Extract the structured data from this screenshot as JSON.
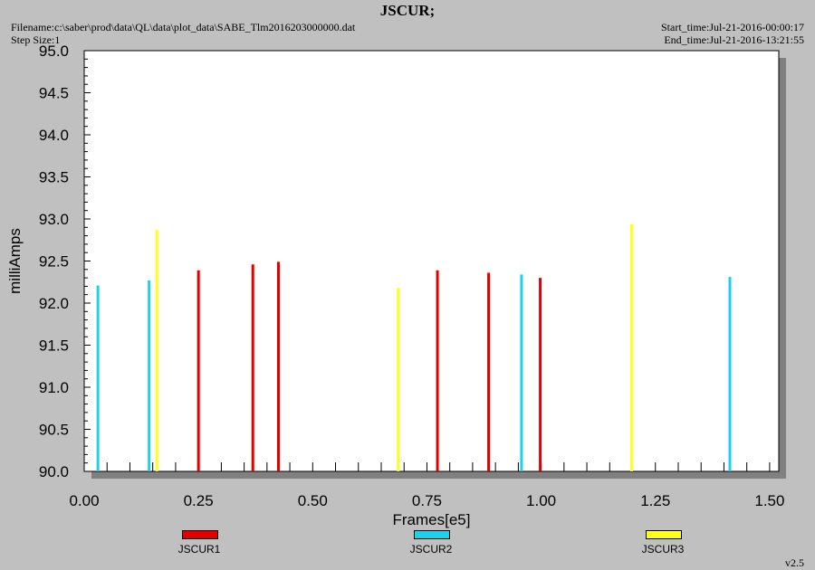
{
  "header": {
    "title": "JSCUR;",
    "filename": "Filename:c:\\saber\\prod\\data\\QL\\data\\plot_data\\SABE_Tlm2016203000000.dat",
    "step_size": "Step Size:1",
    "start_time": "Start_time:Jul-21-2016-00:00:17",
    "end_time": "End_time:Jul-21-2016-13:21:55"
  },
  "version": "v2.5",
  "chart_data": {
    "type": "bar",
    "xlabel": "Frames[e5]",
    "ylabel": "milliAmps",
    "xlim": [
      0,
      1.52
    ],
    "ylim": [
      90.0,
      95.0
    ],
    "x_ticks": [
      "0.00",
      "0.25",
      "0.50",
      "0.75",
      "1.00",
      "1.25",
      "1.50"
    ],
    "y_ticks": [
      "90.0",
      "90.5",
      "91.0",
      "91.5",
      "92.0",
      "92.5",
      "93.0",
      "93.5",
      "94.0",
      "94.5",
      "95.0"
    ],
    "series": [
      {
        "name": "JSCUR1",
        "color": "#e00000",
        "points": [
          [
            0.25,
            92.39
          ],
          [
            0.369,
            92.46
          ],
          [
            0.425,
            92.49
          ],
          [
            0.773,
            92.39
          ],
          [
            0.885,
            92.36
          ],
          [
            0.998,
            92.3
          ]
        ]
      },
      {
        "name": "JSCUR2",
        "color": "#20d0e8",
        "points": [
          [
            0.03,
            92.21
          ],
          [
            0.142,
            92.27
          ],
          [
            0.957,
            92.34
          ],
          [
            1.413,
            92.31
          ]
        ]
      },
      {
        "name": "JSCUR3",
        "color": "#ffff20",
        "points": [
          [
            0.159,
            92.87
          ],
          [
            0.687,
            92.18
          ],
          [
            1.198,
            92.94
          ]
        ]
      }
    ]
  }
}
